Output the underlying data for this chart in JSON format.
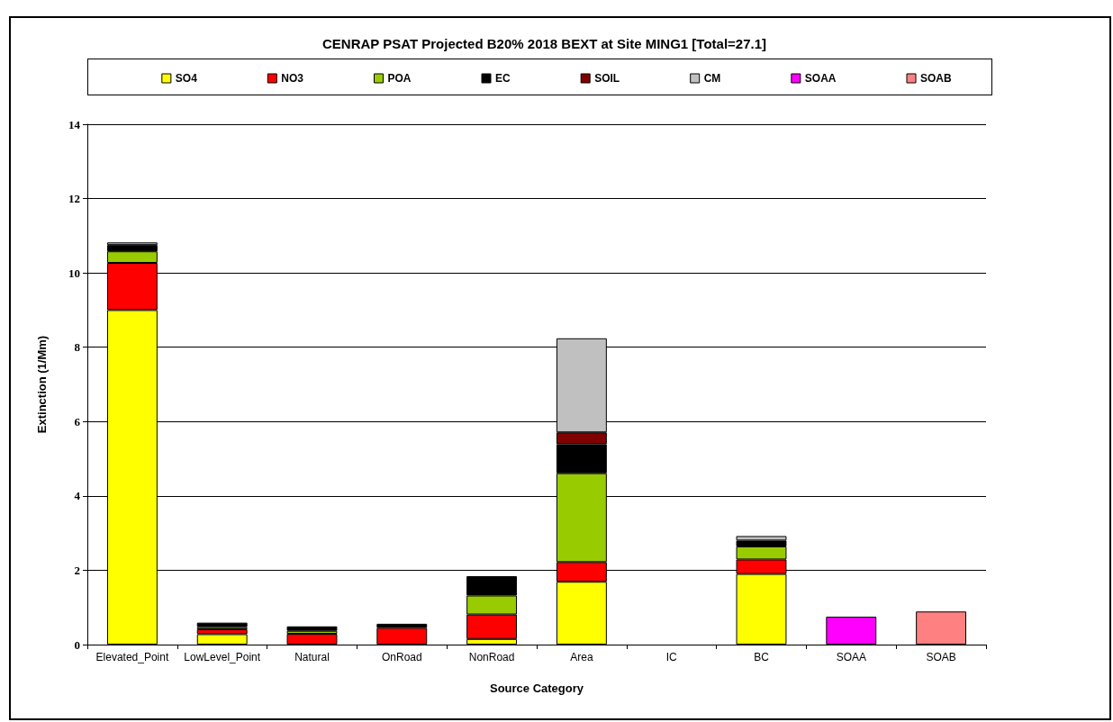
{
  "chart_data": {
    "type": "bar",
    "title": "CENRAP PSAT Projected B20% 2018 BEXT at Site MING1 [Total=27.1]",
    "xlabel": "Source Category",
    "ylabel": "Extinction (1/Mm)",
    "categories": [
      "Elevated_Point",
      "LowLevel_Point",
      "Natural",
      "OnRoad",
      "NonRoad",
      "Area",
      "IC",
      "BC",
      "SOAA",
      "SOAB"
    ],
    "stacked": true,
    "ylim": [
      0,
      14
    ],
    "yticks": [
      0,
      2,
      4,
      6,
      8,
      10,
      12,
      14
    ],
    "grid": "y",
    "legend": "top",
    "series": [
      {
        "name": "SO4",
        "color": "#ffff00",
        "values": [
          9.0,
          0.28,
          null,
          null,
          0.15,
          1.69,
          null,
          1.9,
          null,
          null
        ]
      },
      {
        "name": "NO3",
        "color": "#ff0000",
        "values": [
          1.27,
          0.13,
          0.29,
          0.45,
          0.66,
          0.53,
          null,
          0.39,
          null,
          null
        ]
      },
      {
        "name": "POA",
        "color": "#99cc00",
        "values": [
          0.31,
          0.06,
          0.08,
          null,
          0.51,
          2.39,
          null,
          0.35,
          null,
          null
        ]
      },
      {
        "name": "EC",
        "color": "#000000",
        "values": [
          0.17,
          0.12,
          0.12,
          0.11,
          0.52,
          0.78,
          null,
          0.16,
          null,
          null
        ]
      },
      {
        "name": "SOIL",
        "color": "#800000",
        "values": [
          null,
          null,
          null,
          null,
          null,
          0.32,
          null,
          null,
          null,
          null
        ]
      },
      {
        "name": "CM",
        "color": "#c0c0c0",
        "values": [
          0.07,
          null,
          null,
          null,
          null,
          2.53,
          null,
          0.12,
          null,
          null
        ]
      },
      {
        "name": "SOAA",
        "color": "#ff00ff",
        "values": [
          null,
          null,
          null,
          null,
          null,
          null,
          null,
          null,
          0.75,
          null
        ]
      },
      {
        "name": "SOAB",
        "color": "#ff8080",
        "values": [
          null,
          null,
          null,
          null,
          null,
          null,
          null,
          null,
          null,
          0.89
        ]
      }
    ]
  }
}
